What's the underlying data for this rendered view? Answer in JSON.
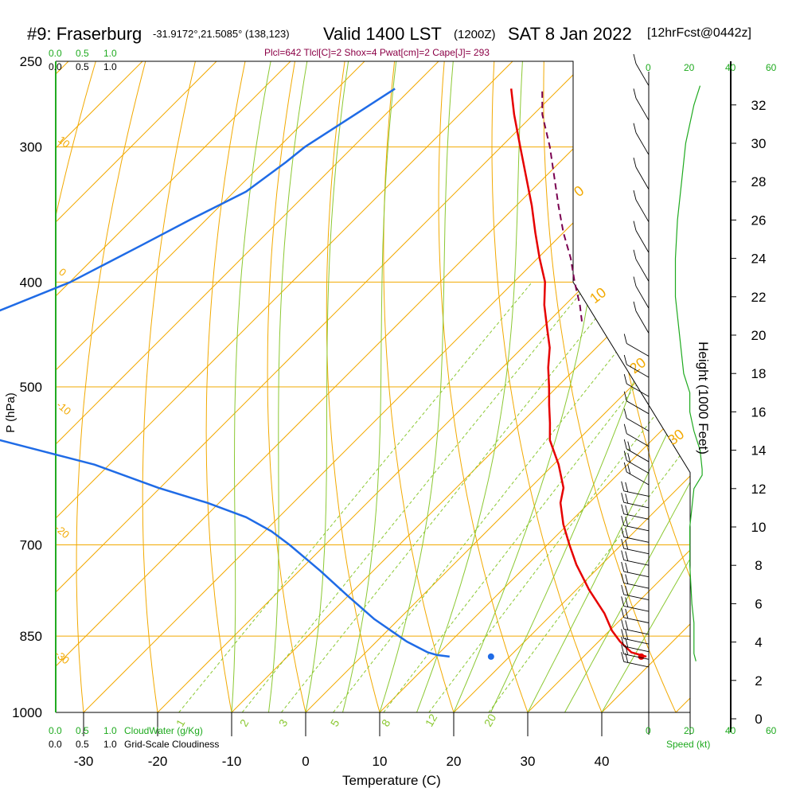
{
  "header": {
    "station": "#9: Fraserburg",
    "coords": "-31.9172°,21.5085° (138,123)",
    "valid": "Valid 1400 LST",
    "zulu": "(1200Z)",
    "date": "SAT 8 Jan 2022",
    "forecast": "[12hrFcst@0442z]",
    "diagnostics": "Plcl=642 Tlcl[C]=2 Shox=4 Pwat[cm]=2 Cape[J]= 293"
  },
  "left_scales": {
    "cloudwater_top": [
      "0.0",
      "0.5",
      "1.0"
    ],
    "cloudiness_top": [
      "0.0",
      "0.5",
      "1.0"
    ],
    "cloudwater_bottom": [
      "0.0",
      "0.5",
      "1.0"
    ],
    "cloudwater_label": "CloudWater (g/Kg)",
    "cloudiness_bottom": [
      "0.0",
      "0.5",
      "1.0"
    ],
    "cloudiness_label": "Grid-Scale Cloudiness"
  },
  "speed_scale": {
    "top": [
      "0",
      "20",
      "40",
      "60"
    ],
    "bottom": [
      "0",
      "20",
      "40",
      "60"
    ],
    "label": "Speed (kt)"
  },
  "colors": {
    "isobar": "#f2a900",
    "isotherm": "#f2a900",
    "dry_adiabat": "#f2a900",
    "moist_adiabat": "#8bc832",
    "mixing_ratio": "#8bc832",
    "temperature": "#e60000",
    "dewpoint": "#1f6be6",
    "parcel": "#7a0050",
    "speed": "#1faa1f",
    "cloud": "#1faa1f"
  },
  "chart_data": {
    "type": "skew-t",
    "title": "",
    "xlabel": "Temperature (C)",
    "ylabel": "P (hPa)",
    "y2label": "Height (1000 Feet)",
    "x_ticks": [
      -30,
      -20,
      -10,
      0,
      10,
      20,
      30,
      40
    ],
    "pressure_ticks": [
      250,
      300,
      400,
      500,
      700,
      850,
      1000
    ],
    "height_ticks": [
      0,
      2,
      4,
      6,
      8,
      10,
      12,
      14,
      16,
      18,
      20,
      22,
      24,
      26,
      28,
      30,
      32
    ],
    "dry_adiabat_labels": [
      "10",
      "0",
      "-10",
      "-20",
      "-30",
      "0",
      "10",
      "20",
      "30"
    ],
    "mixing_ratio_labels": [
      "1",
      "2",
      "3",
      "5",
      "8",
      "12",
      "20"
    ],
    "temperature": {
      "pressure": [
        888,
        880,
        860,
        840,
        810,
        770,
        730,
        700,
        670,
        640,
        620,
        590,
        560,
        540,
        520,
        500,
        480,
        460,
        440,
        420,
        400,
        380,
        360,
        340,
        320,
        300,
        280,
        265
      ],
      "values": [
        38.5,
        35.9,
        32.9,
        30.3,
        27.0,
        21.7,
        16.6,
        13.0,
        9.4,
        6.1,
        4.5,
        0.7,
        -3.8,
        -6.1,
        -8.6,
        -11.1,
        -13.8,
        -16.3,
        -19.5,
        -22.8,
        -25.8,
        -29.8,
        -33.8,
        -37.9,
        -42.5,
        -47.4,
        -52.6,
        -56.5
      ]
    },
    "dewpoint": {
      "pressure": [
        888,
        885,
        880,
        860,
        820,
        780,
        740,
        700,
        680,
        660,
        640,
        620,
        590,
        560,
        540,
        525,
        500,
        480,
        460,
        430,
        400,
        370,
        350,
        330,
        310,
        300,
        280,
        265
      ],
      "values": [
        11.9,
        10.0,
        8.4,
        4.1,
        -3.3,
        -10.1,
        -17.1,
        -24.8,
        -29.1,
        -34.4,
        -41.6,
        -50.2,
        -62.0,
        -78.1,
        -98.8,
        -107.0,
        -110.9,
        -106.4,
        -102.7,
        -96.7,
        -89.9,
        -85.3,
        -82.1,
        -78.4,
        -77.0,
        -76.5,
        -74.1,
        -72.2
      ]
    },
    "parcel": {
      "pressure": [
        435,
        420,
        400,
        380,
        360,
        340,
        320,
        300,
        280,
        265
      ],
      "values": [
        -15.5,
        -18.0,
        -21.8,
        -25.6,
        -30.0,
        -34.3,
        -38.7,
        -43.4,
        -48.8,
        -52.3
      ]
    },
    "surface": {
      "temperature": 37.8,
      "dewpoint": 17.5,
      "pressure": 888
    },
    "wind_speed_kt": {
      "height_kft": [
        3.0,
        3.4,
        4.0,
        5.0,
        6.0,
        8.0,
        10.0,
        11.0,
        12.0,
        12.7,
        13.0,
        14.0,
        15.0,
        16.0,
        17.0,
        18.0,
        20.0,
        22.0,
        24.0,
        26.0,
        28.0,
        30.0,
        32.0,
        33.0
      ],
      "values": [
        23,
        22,
        22,
        22,
        21,
        20,
        20,
        21,
        22,
        26,
        26,
        25,
        22,
        20,
        20,
        17,
        15,
        13,
        13,
        14,
        16,
        18,
        22,
        25
      ]
    },
    "wind_barbs_height_kft": [
      2.7,
      3.1,
      3.5,
      3.9,
      4.4,
      5.0,
      5.6,
      6.2,
      6.8,
      7.4,
      8.0,
      8.6,
      9.2,
      9.8,
      10.4,
      11.0,
      11.6,
      12.2,
      12.8,
      13.4,
      14.2,
      15.0,
      15.9,
      16.8,
      17.8,
      18.9,
      20.1,
      21.4,
      22.8,
      24.3,
      25.9,
      27.6,
      29.4,
      31.2,
      33.0
    ]
  }
}
